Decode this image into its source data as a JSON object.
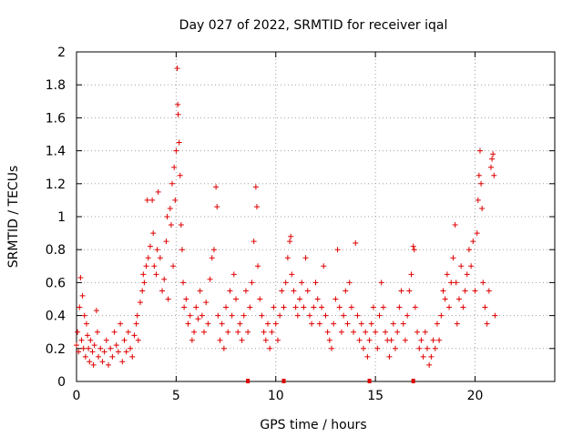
{
  "chart_data": {
    "type": "scatter",
    "title": "Day 027 of 2022, SRMTID for receiver iqal",
    "xlabel": "GPS time / hours",
    "ylabel": "SRMTID / TECUs",
    "xlim": [
      0,
      24
    ],
    "ylim": [
      0,
      2
    ],
    "xticks": [
      0,
      5,
      10,
      15,
      20
    ],
    "yticks": [
      0,
      0.2,
      0.4,
      0.6,
      0.8,
      1,
      1.2,
      1.4,
      1.6,
      1.8,
      2
    ],
    "xtick_labels": [
      "0",
      "5",
      "10",
      "15",
      "20"
    ],
    "ytick_labels": [
      "0",
      "0.2",
      "0.4",
      "0.6",
      "0.8",
      "1",
      "1.2",
      "1.4",
      "1.6",
      "1.8",
      "2"
    ],
    "grid": true,
    "marker": "+",
    "marker_color": "#e00000",
    "series": [
      {
        "name": "SRMTID",
        "points": [
          [
            0.0,
            0.22
          ],
          [
            0.05,
            0.3
          ],
          [
            0.1,
            0.18
          ],
          [
            0.15,
            0.45
          ],
          [
            0.2,
            0.63
          ],
          [
            0.25,
            0.25
          ],
          [
            0.3,
            0.52
          ],
          [
            0.35,
            0.2
          ],
          [
            0.4,
            0.4
          ],
          [
            0.45,
            0.15
          ],
          [
            0.5,
            0.35
          ],
          [
            0.55,
            0.28
          ],
          [
            0.6,
            0.2
          ],
          [
            0.65,
            0.12
          ],
          [
            0.7,
            0.25
          ],
          [
            0.8,
            0.18
          ],
          [
            0.85,
            0.1
          ],
          [
            0.9,
            0.22
          ],
          [
            1.0,
            0.43
          ],
          [
            1.05,
            0.3
          ],
          [
            1.1,
            0.15
          ],
          [
            1.2,
            0.2
          ],
          [
            1.3,
            0.12
          ],
          [
            1.4,
            0.18
          ],
          [
            1.5,
            0.25
          ],
          [
            1.6,
            0.1
          ],
          [
            1.7,
            0.2
          ],
          [
            1.8,
            0.15
          ],
          [
            1.9,
            0.3
          ],
          [
            2.0,
            0.22
          ],
          [
            2.1,
            0.18
          ],
          [
            2.2,
            0.35
          ],
          [
            2.3,
            0.12
          ],
          [
            2.4,
            0.25
          ],
          [
            2.5,
            0.18
          ],
          [
            2.6,
            0.3
          ],
          [
            2.7,
            0.2
          ],
          [
            2.8,
            0.15
          ],
          [
            2.9,
            0.28
          ],
          [
            3.0,
            0.35
          ],
          [
            3.05,
            0.4
          ],
          [
            3.1,
            0.25
          ],
          [
            3.2,
            0.48
          ],
          [
            3.3,
            0.55
          ],
          [
            3.35,
            0.65
          ],
          [
            3.4,
            0.6
          ],
          [
            3.5,
            0.7
          ],
          [
            3.55,
            1.1
          ],
          [
            3.6,
            0.75
          ],
          [
            3.7,
            0.82
          ],
          [
            3.8,
            1.1
          ],
          [
            3.85,
            0.9
          ],
          [
            3.9,
            0.7
          ],
          [
            4.0,
            0.65
          ],
          [
            4.05,
            0.8
          ],
          [
            4.1,
            1.15
          ],
          [
            4.2,
            0.75
          ],
          [
            4.3,
            0.55
          ],
          [
            4.4,
            0.62
          ],
          [
            4.5,
            0.85
          ],
          [
            4.55,
            1.0
          ],
          [
            4.6,
            0.5
          ],
          [
            4.7,
            1.05
          ],
          [
            4.75,
            0.95
          ],
          [
            4.8,
            1.2
          ],
          [
            4.85,
            0.7
          ],
          [
            4.9,
            1.3
          ],
          [
            4.95,
            1.1
          ],
          [
            5.0,
            1.4
          ],
          [
            5.05,
            1.9
          ],
          [
            5.08,
            1.68
          ],
          [
            5.1,
            1.62
          ],
          [
            5.15,
            1.45
          ],
          [
            5.2,
            1.25
          ],
          [
            5.25,
            0.95
          ],
          [
            5.3,
            0.8
          ],
          [
            5.35,
            0.6
          ],
          [
            5.4,
            0.45
          ],
          [
            5.5,
            0.5
          ],
          [
            5.6,
            0.35
          ],
          [
            5.7,
            0.4
          ],
          [
            5.8,
            0.25
          ],
          [
            5.9,
            0.3
          ],
          [
            6.0,
            0.45
          ],
          [
            6.1,
            0.38
          ],
          [
            6.2,
            0.55
          ],
          [
            6.3,
            0.4
          ],
          [
            6.4,
            0.3
          ],
          [
            6.5,
            0.48
          ],
          [
            6.6,
            0.35
          ],
          [
            6.7,
            0.62
          ],
          [
            6.8,
            0.75
          ],
          [
            6.9,
            0.8
          ],
          [
            7.0,
            1.18
          ],
          [
            7.05,
            1.06
          ],
          [
            7.1,
            0.4
          ],
          [
            7.2,
            0.25
          ],
          [
            7.3,
            0.35
          ],
          [
            7.4,
            0.2
          ],
          [
            7.5,
            0.45
          ],
          [
            7.6,
            0.3
          ],
          [
            7.7,
            0.55
          ],
          [
            7.8,
            0.4
          ],
          [
            7.9,
            0.65
          ],
          [
            8.0,
            0.5
          ],
          [
            8.1,
            0.3
          ],
          [
            8.2,
            0.35
          ],
          [
            8.3,
            0.25
          ],
          [
            8.4,
            0.4
          ],
          [
            8.5,
            0.55
          ],
          [
            8.6,
            0.3
          ],
          [
            8.7,
            0.45
          ],
          [
            8.8,
            0.6
          ],
          [
            8.9,
            0.85
          ],
          [
            9.0,
            1.18
          ],
          [
            9.05,
            1.06
          ],
          [
            9.1,
            0.7
          ],
          [
            9.2,
            0.5
          ],
          [
            9.3,
            0.4
          ],
          [
            9.4,
            0.3
          ],
          [
            9.5,
            0.25
          ],
          [
            9.6,
            0.35
          ],
          [
            9.7,
            0.2
          ],
          [
            9.8,
            0.3
          ],
          [
            9.9,
            0.45
          ],
          [
            10.0,
            0.35
          ],
          [
            10.1,
            0.25
          ],
          [
            10.2,
            0.4
          ],
          [
            10.3,
            0.55
          ],
          [
            10.4,
            0.45
          ],
          [
            10.5,
            0.6
          ],
          [
            10.6,
            0.75
          ],
          [
            10.7,
            0.85
          ],
          [
            10.75,
            0.88
          ],
          [
            10.8,
            0.65
          ],
          [
            10.9,
            0.55
          ],
          [
            11.0,
            0.45
          ],
          [
            11.1,
            0.4
          ],
          [
            11.2,
            0.5
          ],
          [
            11.3,
            0.6
          ],
          [
            11.4,
            0.45
          ],
          [
            11.5,
            0.75
          ],
          [
            11.6,
            0.55
          ],
          [
            11.7,
            0.4
          ],
          [
            11.8,
            0.35
          ],
          [
            11.9,
            0.45
          ],
          [
            12.0,
            0.6
          ],
          [
            12.1,
            0.5
          ],
          [
            12.2,
            0.35
          ],
          [
            12.3,
            0.45
          ],
          [
            12.4,
            0.7
          ],
          [
            12.5,
            0.4
          ],
          [
            12.6,
            0.3
          ],
          [
            12.7,
            0.25
          ],
          [
            12.8,
            0.2
          ],
          [
            12.9,
            0.35
          ],
          [
            13.0,
            0.5
          ],
          [
            13.1,
            0.8
          ],
          [
            13.2,
            0.45
          ],
          [
            13.3,
            0.3
          ],
          [
            13.4,
            0.4
          ],
          [
            13.5,
            0.55
          ],
          [
            13.6,
            0.35
          ],
          [
            13.7,
            0.6
          ],
          [
            13.8,
            0.45
          ],
          [
            13.9,
            0.3
          ],
          [
            14.0,
            0.84
          ],
          [
            14.1,
            0.4
          ],
          [
            14.2,
            0.25
          ],
          [
            14.3,
            0.35
          ],
          [
            14.4,
            0.2
          ],
          [
            14.5,
            0.3
          ],
          [
            14.6,
            0.15
          ],
          [
            14.7,
            0.25
          ],
          [
            14.8,
            0.35
          ],
          [
            14.9,
            0.45
          ],
          [
            15.0,
            0.3
          ],
          [
            15.1,
            0.2
          ],
          [
            15.2,
            0.4
          ],
          [
            15.3,
            0.6
          ],
          [
            15.4,
            0.45
          ],
          [
            15.5,
            0.3
          ],
          [
            15.6,
            0.25
          ],
          [
            15.7,
            0.15
          ],
          [
            15.8,
            0.25
          ],
          [
            15.9,
            0.35
          ],
          [
            16.0,
            0.2
          ],
          [
            16.1,
            0.3
          ],
          [
            16.2,
            0.45
          ],
          [
            16.3,
            0.55
          ],
          [
            16.4,
            0.35
          ],
          [
            16.5,
            0.25
          ],
          [
            16.6,
            0.4
          ],
          [
            16.7,
            0.55
          ],
          [
            16.8,
            0.65
          ],
          [
            16.9,
            0.82
          ],
          [
            16.95,
            0.8
          ],
          [
            17.0,
            0.45
          ],
          [
            17.1,
            0.3
          ],
          [
            17.2,
            0.2
          ],
          [
            17.3,
            0.25
          ],
          [
            17.4,
            0.15
          ],
          [
            17.5,
            0.3
          ],
          [
            17.6,
            0.2
          ],
          [
            17.7,
            0.1
          ],
          [
            17.8,
            0.15
          ],
          [
            17.9,
            0.25
          ],
          [
            18.0,
            0.2
          ],
          [
            18.1,
            0.35
          ],
          [
            18.2,
            0.25
          ],
          [
            18.3,
            0.4
          ],
          [
            18.4,
            0.55
          ],
          [
            18.5,
            0.5
          ],
          [
            18.6,
            0.65
          ],
          [
            18.7,
            0.45
          ],
          [
            18.8,
            0.6
          ],
          [
            18.9,
            0.75
          ],
          [
            19.0,
            0.95
          ],
          [
            19.05,
            0.6
          ],
          [
            19.1,
            0.35
          ],
          [
            19.2,
            0.5
          ],
          [
            19.3,
            0.7
          ],
          [
            19.4,
            0.45
          ],
          [
            19.5,
            0.55
          ],
          [
            19.6,
            0.65
          ],
          [
            19.7,
            0.8
          ],
          [
            19.8,
            0.7
          ],
          [
            19.9,
            0.85
          ],
          [
            20.0,
            0.55
          ],
          [
            20.1,
            0.9
          ],
          [
            20.15,
            1.1
          ],
          [
            20.2,
            1.25
          ],
          [
            20.25,
            1.4
          ],
          [
            20.3,
            1.2
          ],
          [
            20.35,
            1.05
          ],
          [
            20.4,
            0.6
          ],
          [
            20.5,
            0.45
          ],
          [
            20.6,
            0.35
          ],
          [
            20.7,
            0.55
          ],
          [
            20.8,
            1.3
          ],
          [
            20.85,
            1.35
          ],
          [
            20.9,
            1.38
          ],
          [
            20.95,
            1.25
          ],
          [
            21.0,
            0.4
          ]
        ]
      }
    ],
    "baseline_markers_x": [
      8.6,
      10.4,
      14.7,
      16.9
    ]
  }
}
